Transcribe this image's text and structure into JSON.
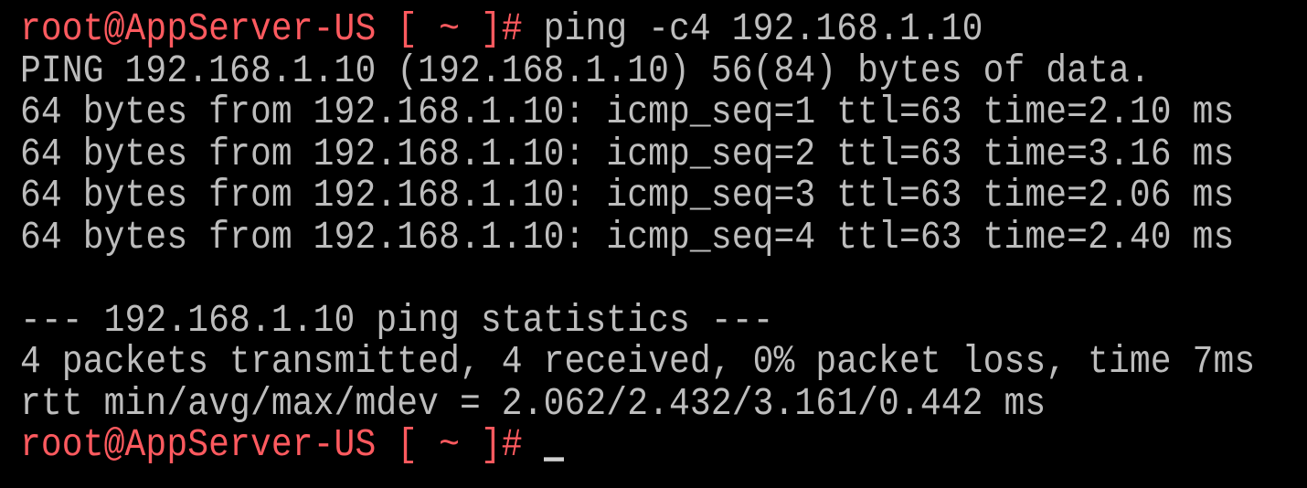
{
  "terminal": {
    "colors": {
      "background": "#000000",
      "text": "#bdbdbd",
      "prompt": "#ff5a5f"
    },
    "prompt": "root@AppServer-US [ ~ ]#",
    "command": " ping -c4 192.168.1.10",
    "output": [
      "PING 192.168.1.10 (192.168.1.10) 56(84) bytes of data.",
      "64 bytes from 192.168.1.10: icmp_seq=1 ttl=63 time=2.10 ms",
      "64 bytes from 192.168.1.10: icmp_seq=2 ttl=63 time=3.16 ms",
      "64 bytes from 192.168.1.10: icmp_seq=3 ttl=63 time=2.06 ms",
      "64 bytes from 192.168.1.10: icmp_seq=4 ttl=63 time=2.40 ms",
      "",
      "--- 192.168.1.10 ping statistics ---",
      "4 packets transmitted, 4 received, 0% packet loss, time 7ms",
      "rtt min/avg/max/mdev = 2.062/2.432/3.161/0.442 ms"
    ],
    "final_prompt": "root@AppServer-US [ ~ ]#"
  }
}
